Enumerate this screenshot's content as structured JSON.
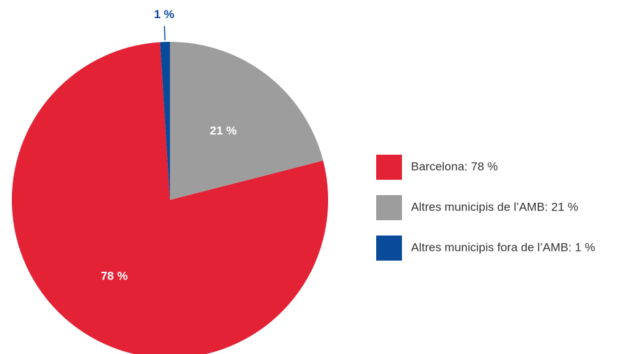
{
  "chart_data": {
    "type": "pie",
    "categories": [
      "Barcelona: 78 %",
      "Altres municipis de l’AMB: 21 %",
      "Altres municipis fora de l’AMB: 1 %"
    ],
    "values": [
      78,
      21,
      1
    ],
    "value_labels": [
      "78 %",
      "21 %",
      "1 %"
    ],
    "colors": [
      "#e32236",
      "#9d9d9d",
      "#0a4a9a"
    ],
    "legend": "right"
  }
}
